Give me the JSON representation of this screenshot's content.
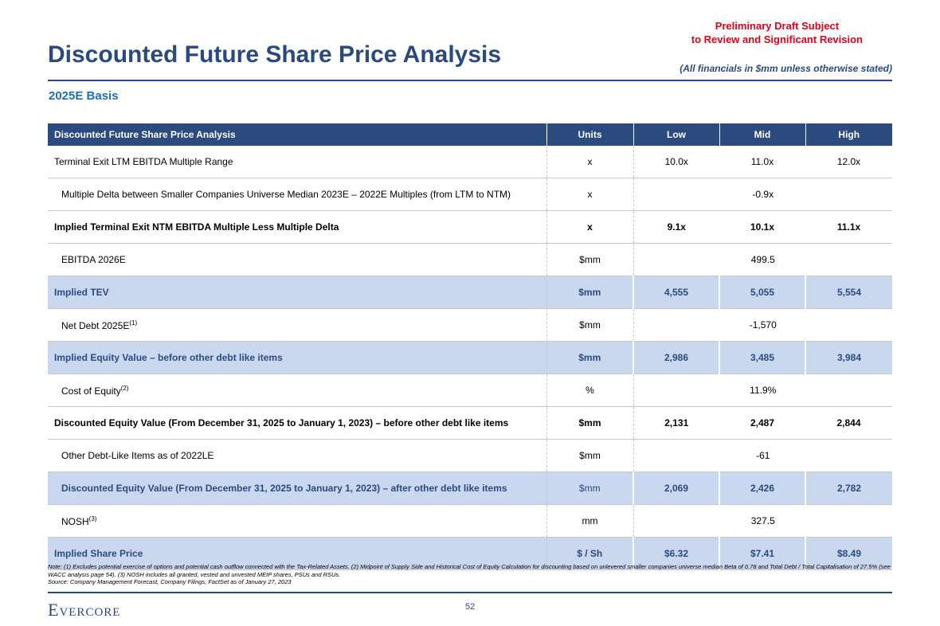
{
  "header": {
    "draft_note": [
      "Preliminary Draft Subject",
      "to Review and Significant Revision"
    ],
    "title": "Discounted Future Share Price Analysis",
    "units_note": "(All financials in $mm unless otherwise stated)",
    "subtitle": "2025E Basis"
  },
  "table": {
    "columns": [
      "Discounted Future Share Price Analysis",
      "Units",
      "Low",
      "Mid",
      "High"
    ],
    "rows": [
      {
        "label": "Terminal Exit LTM EBITDA Multiple Range",
        "units": "x",
        "values": [
          "10.0x",
          "11.0x",
          "12.0x"
        ]
      },
      {
        "label": "Multiple Delta between Smaller Companies Universe Median 2023E – 2022E Multiples (from LTM to NTM)",
        "units": "x",
        "values": [
          "-0.9x"
        ]
      },
      {
        "label": "Implied Terminal Exit NTM EBITDA Multiple Less Multiple Delta",
        "units": "x",
        "values": [
          "9.1x",
          "10.1x",
          "11.1x"
        ]
      },
      {
        "label": "EBITDA 2026E",
        "units": "$mm",
        "values": [
          "499.5"
        ]
      },
      {
        "label": "Implied TEV",
        "units": "$mm",
        "values": [
          "4,555",
          "5,055",
          "5,554"
        ]
      },
      {
        "label": "Net Debt 2025E",
        "note": "(1)",
        "units": "$mm",
        "values": [
          "-1,570"
        ]
      },
      {
        "label": "Implied Equity Value – before other debt like items",
        "units": "$mm",
        "values": [
          "2,986",
          "3,485",
          "3,984"
        ]
      },
      {
        "label": "Cost of Equity",
        "note": "(2)",
        "units": "%",
        "values": [
          "11.9%"
        ]
      },
      {
        "label": "Discounted Equity Value (From December 31, 2025 to January 1, 2023) – before other debt like items",
        "units": "$mm",
        "values": [
          "2,131",
          "2,487",
          "2,844"
        ]
      },
      {
        "label": "Other Debt-Like Items as of 2022LE",
        "units": "$mm",
        "values": [
          "-61"
        ]
      },
      {
        "label": "Discounted Equity Value (From December 31, 2025 to January 1, 2023) – after other debt like items",
        "units": "$mm",
        "values": [
          "2,069",
          "2,426",
          "2,782"
        ]
      },
      {
        "label": "NOSH",
        "note": "(3)",
        "units": "mm",
        "values": [
          "327.5"
        ]
      },
      {
        "label": "Implied Share Price",
        "units": "$ / Sh",
        "values": [
          "$6.32",
          "$7.41",
          "$8.49"
        ]
      }
    ]
  },
  "footer": {
    "note": "Note: (1) Excludes potential exercise of options and potential cash outflow connected with the Tax-Related Assets. (2) Midpoint of Supply Side and Historical Cost of Equity Calculation for discounting based on unlevered smaller companies universe median Beta of 0.78 and Total Debt / Total Capitalisation of 27.5% (see WACC analysis page 54). (3) NOSH includes all granted, vested and unvested MEIP shares, PSUs and RSUs.",
    "source": "Source: Company Management Forecast, Company Filings, FactSet as of January 27, 2023",
    "logo": "Evercore",
    "page": "52"
  }
}
